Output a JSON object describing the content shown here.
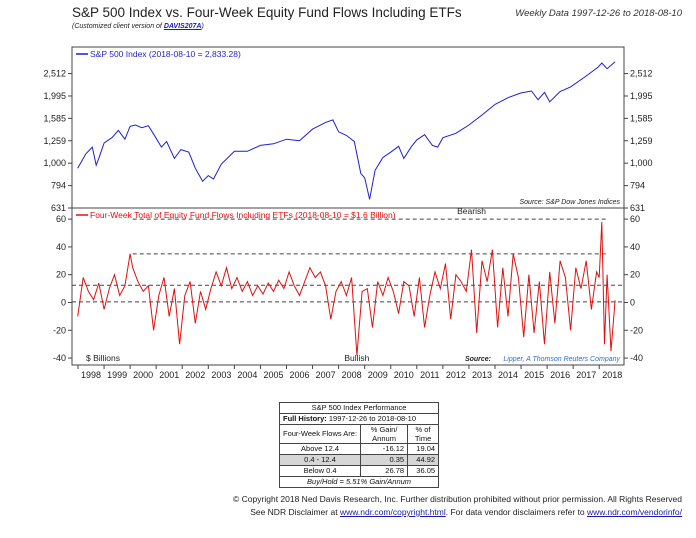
{
  "header": {
    "title": "S&P 500 Index vs. Four-Week Equity Fund Flows Including ETFs",
    "subtitle_prefix": "(Customized client version of ",
    "subtitle_link": "DAVIS207A",
    "subtitle_suffix": ")",
    "date_range": "Weekly Data 1997-12-26 to 2018-08-10"
  },
  "colors": {
    "sp500": "#1f1fd0",
    "flows": "#e01010",
    "grid": "#444444"
  },
  "chart_data": [
    {
      "type": "line",
      "legend": "S&P 500 Index (2018-08-10 = 2,833.28)",
      "source": "Source:   S&P Dow Jones Indices",
      "scale": "log",
      "ylim": [
        631,
        3300
      ],
      "yticks": [
        631,
        794,
        1000,
        1259,
        1585,
        1995,
        2512
      ],
      "ytick_labels": [
        "631",
        "794",
        "1,000",
        "1,259",
        "1,585",
        "1,995",
        "2,512"
      ],
      "x": [
        1997.99,
        1998.3,
        1998.55,
        1998.7,
        1998.8,
        1999.0,
        1999.3,
        1999.55,
        1999.8,
        2000.0,
        2000.2,
        2000.45,
        2000.7,
        2000.95,
        2001.2,
        2001.4,
        2001.7,
        2001.95,
        2002.25,
        2002.5,
        2002.78,
        2003.0,
        2003.2,
        2003.5,
        2004.0,
        2004.5,
        2005.0,
        2005.5,
        2006.0,
        2006.5,
        2007.0,
        2007.5,
        2007.78,
        2008.0,
        2008.3,
        2008.6,
        2008.85,
        2009.0,
        2009.19,
        2009.4,
        2009.7,
        2010.0,
        2010.3,
        2010.5,
        2010.8,
        2011.0,
        2011.3,
        2011.6,
        2011.8,
        2012.0,
        2012.5,
        2013.0,
        2013.5,
        2014.0,
        2014.5,
        2015.0,
        2015.4,
        2015.65,
        2015.9,
        2016.1,
        2016.5,
        2016.9,
        2017.5,
        2017.95,
        2018.1,
        2018.3,
        2018.61
      ],
      "y": [
        950,
        1100,
        1180,
        980,
        1050,
        1230,
        1300,
        1400,
        1280,
        1460,
        1480,
        1440,
        1470,
        1320,
        1180,
        1250,
        1050,
        1150,
        1120,
        950,
        830,
        880,
        850,
        990,
        1130,
        1130,
        1200,
        1220,
        1280,
        1260,
        1420,
        1520,
        1560,
        1380,
        1330,
        1250,
        900,
        860,
        690,
        930,
        1060,
        1120,
        1190,
        1050,
        1190,
        1270,
        1340,
        1200,
        1180,
        1300,
        1360,
        1480,
        1640,
        1830,
        1960,
        2060,
        2100,
        1920,
        2070,
        1880,
        2090,
        2190,
        2450,
        2680,
        2800,
        2640,
        2833
      ]
    },
    {
      "type": "line",
      "legend": "Four-Week Total of Equity Fund Flows Including ETFs (2018-08-10 = $1.6 Billion)",
      "units_label": "$ Billions",
      "ylim": [
        -45,
        68
      ],
      "yticks": [
        -40,
        -20,
        0,
        20,
        40,
        60
      ],
      "ytick_labels": [
        "-40",
        "-20",
        "0",
        "20",
        "40",
        "60"
      ],
      "thresholds": [
        60,
        35,
        12.4,
        0.4
      ],
      "annotations": {
        "upper": "Bearish",
        "lower": "Bullish"
      },
      "source_prefix": "Source:",
      "source_link": "Lipper, A Thomson Reuters Company",
      "x": [
        1997.99,
        1998.2,
        1998.4,
        1998.6,
        1998.8,
        1999.0,
        1999.2,
        1999.4,
        1999.6,
        1999.8,
        2000.0,
        2000.1,
        2000.3,
        2000.5,
        2000.7,
        2000.9,
        2001.1,
        2001.3,
        2001.5,
        2001.7,
        2001.9,
        2002.1,
        2002.3,
        2002.5,
        2002.7,
        2002.9,
        2003.1,
        2003.3,
        2003.5,
        2003.7,
        2003.9,
        2004.1,
        2004.3,
        2004.5,
        2004.7,
        2004.9,
        2005.1,
        2005.3,
        2005.5,
        2005.7,
        2005.9,
        2006.1,
        2006.3,
        2006.5,
        2006.7,
        2006.9,
        2007.1,
        2007.3,
        2007.5,
        2007.7,
        2007.9,
        2008.1,
        2008.3,
        2008.5,
        2008.7,
        2008.9,
        2009.1,
        2009.3,
        2009.5,
        2009.7,
        2009.9,
        2010.1,
        2010.3,
        2010.5,
        2010.7,
        2010.9,
        2011.1,
        2011.3,
        2011.5,
        2011.7,
        2011.9,
        2012.1,
        2012.3,
        2012.5,
        2012.7,
        2012.9,
        2013.1,
        2013.3,
        2013.5,
        2013.7,
        2013.9,
        2014.1,
        2014.3,
        2014.5,
        2014.7,
        2014.9,
        2015.1,
        2015.3,
        2015.5,
        2015.7,
        2015.9,
        2016.1,
        2016.3,
        2016.5,
        2016.7,
        2016.9,
        2017.1,
        2017.3,
        2017.5,
        2017.7,
        2017.9,
        2018.0,
        2018.1,
        2018.2,
        2018.3,
        2018.45,
        2018.61
      ],
      "y": [
        -10,
        18,
        8,
        2,
        14,
        -5,
        10,
        20,
        5,
        12,
        35,
        25,
        15,
        8,
        12,
        -20,
        5,
        18,
        -10,
        10,
        -30,
        5,
        15,
        -15,
        8,
        -5,
        10,
        22,
        12,
        25,
        10,
        18,
        8,
        15,
        5,
        12,
        6,
        14,
        8,
        16,
        10,
        22,
        12,
        5,
        15,
        25,
        18,
        22,
        12,
        -12,
        8,
        15,
        5,
        18,
        -38,
        8,
        10,
        -18,
        15,
        5,
        18,
        8,
        -8,
        15,
        12,
        -10,
        18,
        -18,
        5,
        22,
        10,
        28,
        -12,
        20,
        15,
        8,
        38,
        -22,
        30,
        15,
        38,
        -18,
        25,
        -10,
        35,
        18,
        -25,
        20,
        -22,
        15,
        -30,
        22,
        -15,
        30,
        18,
        -20,
        25,
        10,
        30,
        -5,
        22,
        18,
        58,
        -30,
        20,
        -35,
        1.6
      ]
    }
  ],
  "x_axis": {
    "years": [
      "1998",
      "1999",
      "2000",
      "2001",
      "2002",
      "2003",
      "2004",
      "2005",
      "2006",
      "2007",
      "2008",
      "2009",
      "2010",
      "2011",
      "2012",
      "2013",
      "2014",
      "2015",
      "2016",
      "2017",
      "2018"
    ],
    "range": [
      1997.77,
      2018.95
    ]
  },
  "performance_table": {
    "title": "S&P 500 Index Performance",
    "history_label": "Full History:",
    "history_range": "1997-12-26 to 2018-08-10",
    "row_header": "Four-Week Flows Are:",
    "col_gain": "% Gain/ Annum",
    "col_time": "% of Time",
    "rows": [
      {
        "label": "Above 12.4",
        "gain": "-16.12",
        "time": "19.04"
      },
      {
        "label": "0.4 - 12.4",
        "gain": "0.35",
        "time": "44.92"
      },
      {
        "label": "Below 0.4",
        "gain": "26.78",
        "time": "36.05"
      }
    ],
    "buy_hold": "Buy/Hold = 5.51% Gain/Annum"
  },
  "footer": {
    "line1": "© Copyright 2018 Ned Davis Research, Inc. Further distribution prohibited without prior permission. All Rights Reserved",
    "line2_prefix": "See NDR Disclaimer at ",
    "line2_link1": "www.ndr.com/copyright.html",
    "line2_mid": ". For data vendor disclaimers refer to ",
    "line2_link2": "www.ndr.com/vendorinfo/"
  }
}
